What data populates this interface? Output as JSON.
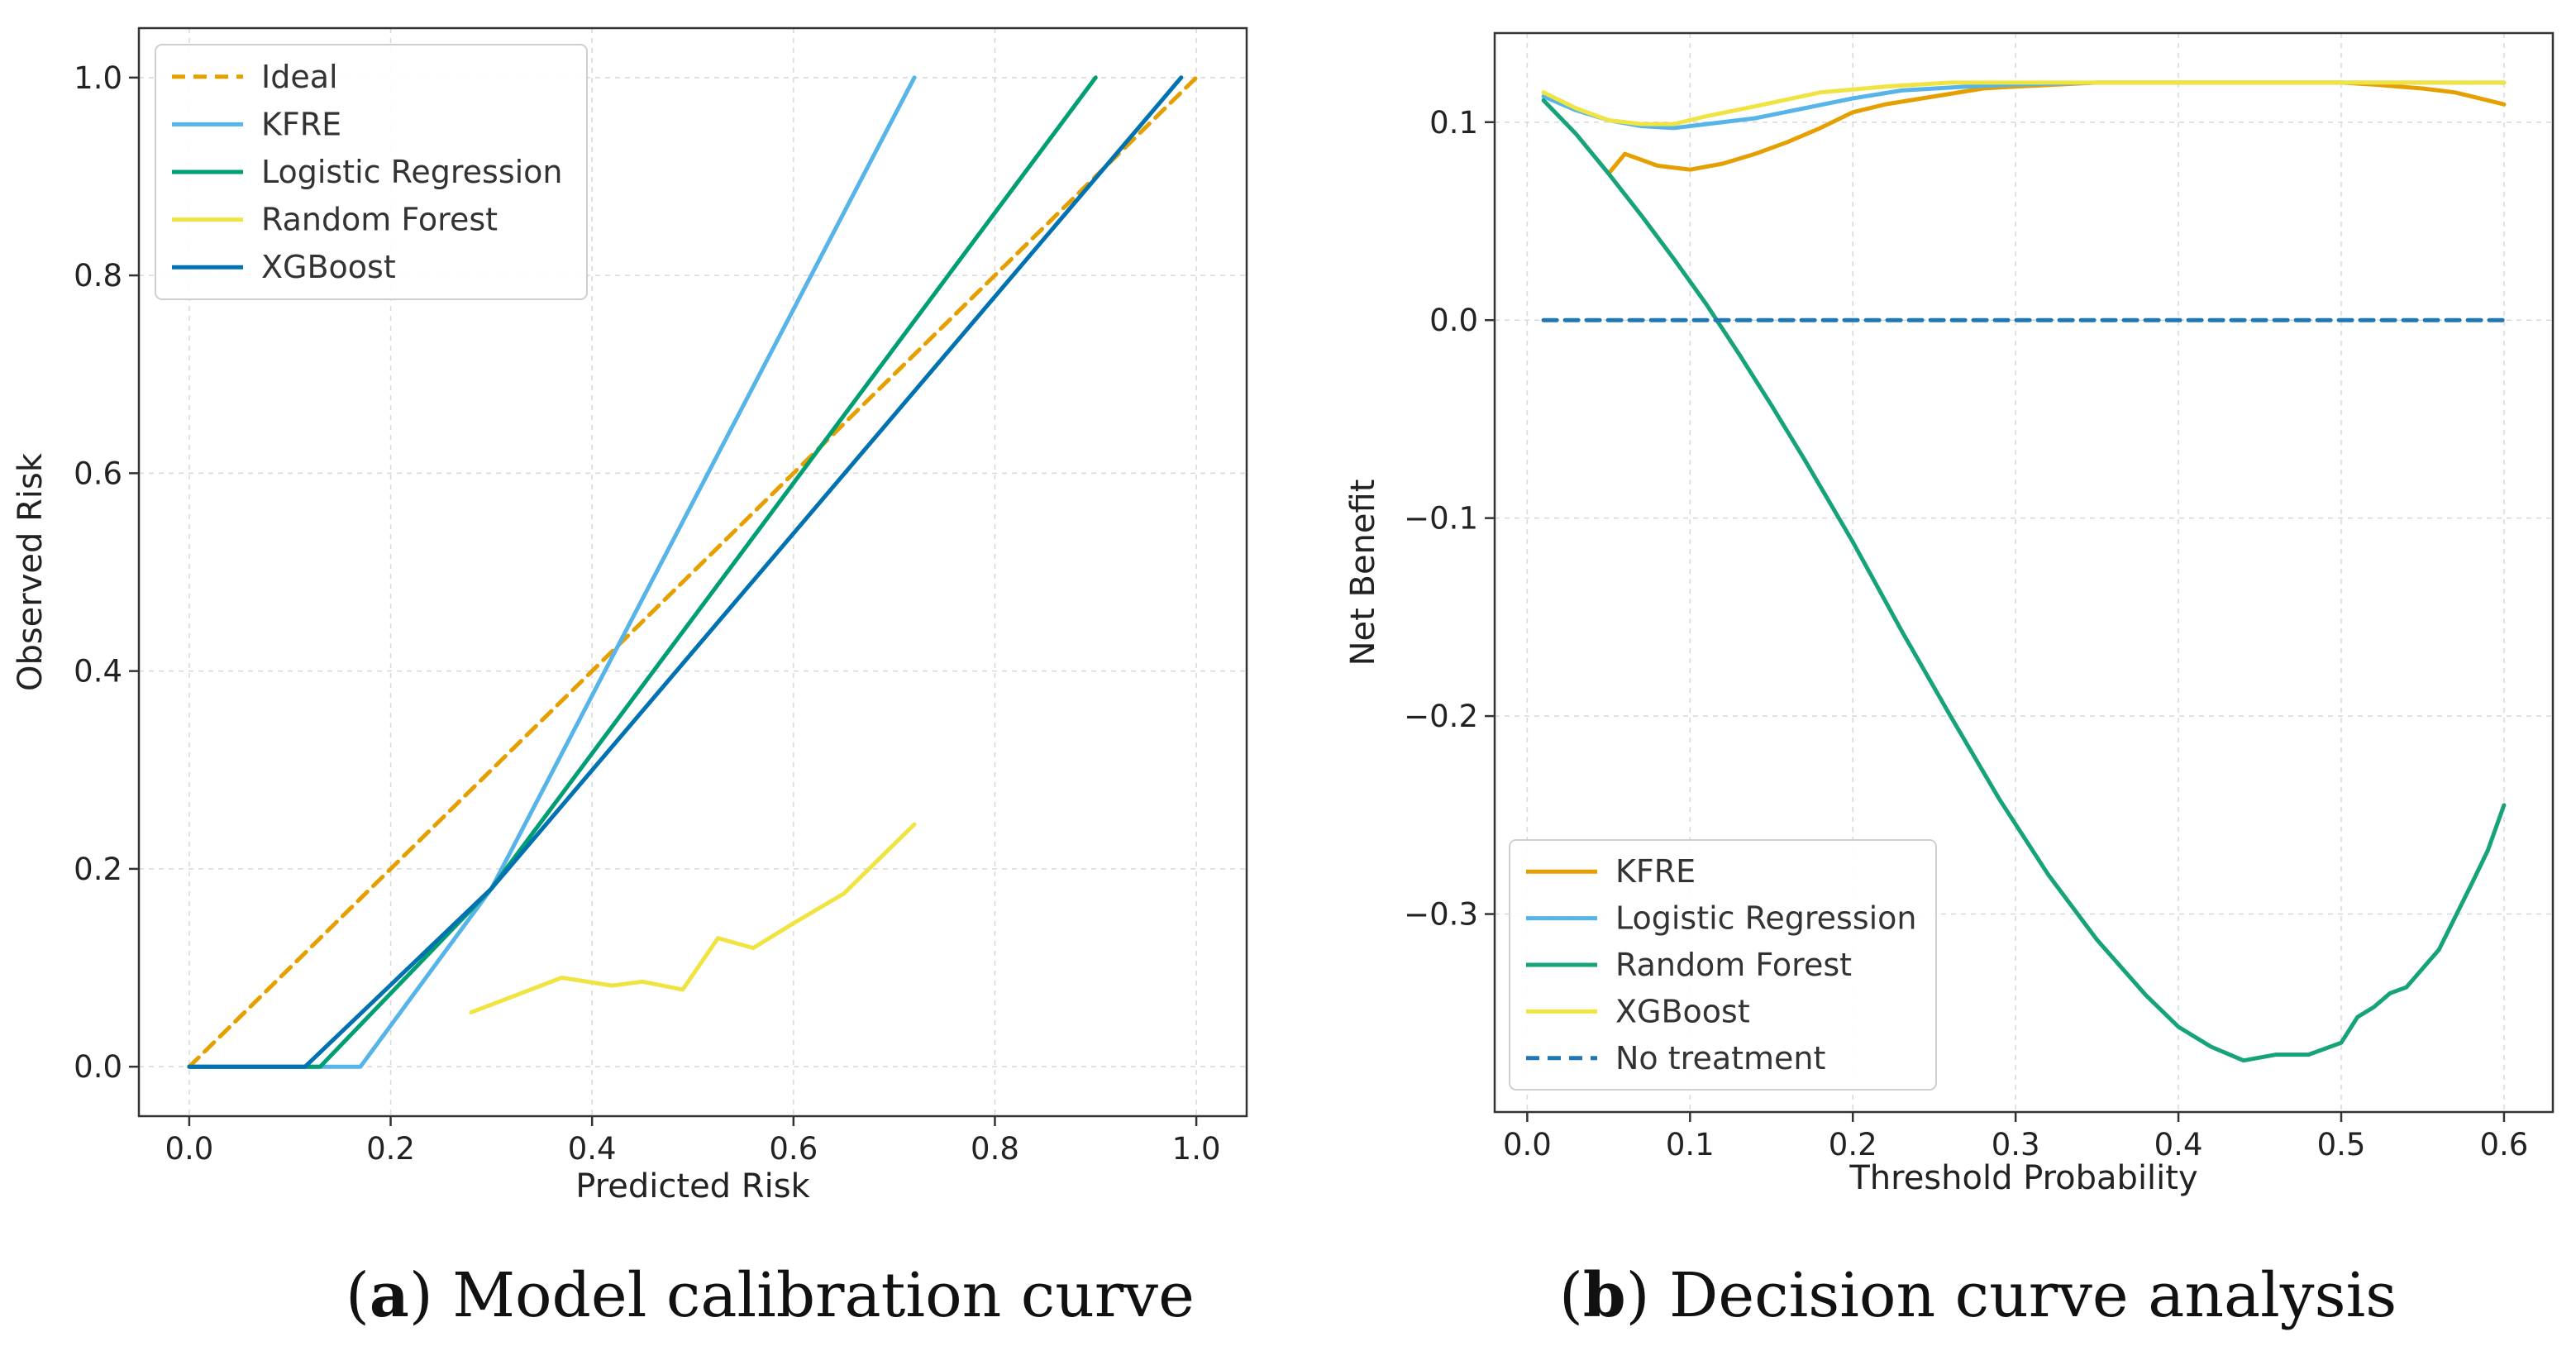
{
  "chart_data": [
    {
      "type": "line",
      "panel": "a",
      "caption_label": "a",
      "caption_text": "Model calibration curve",
      "xlabel": "Predicted Risk",
      "ylabel": "Observed Risk",
      "xlim": [
        -0.05,
        1.05
      ],
      "ylim": [
        -0.05,
        1.05
      ],
      "xticks": [
        0.0,
        0.2,
        0.4,
        0.6,
        0.8,
        1.0
      ],
      "yticks": [
        0.0,
        0.2,
        0.4,
        0.6,
        0.8,
        1.0
      ],
      "xtick_labels": [
        "0.0",
        "0.2",
        "0.4",
        "0.6",
        "0.8",
        "1.0"
      ],
      "ytick_labels": [
        "0.0",
        "0.2",
        "0.4",
        "0.6",
        "0.8",
        "1.0"
      ],
      "grid": true,
      "legend_position": "top-left",
      "series": [
        {
          "name": "Ideal",
          "color": "#E69F00",
          "dash": true,
          "x": [
            0.0,
            1.0
          ],
          "y": [
            0.0,
            1.0
          ]
        },
        {
          "name": "KFRE",
          "color": "#56B4E9",
          "dash": false,
          "x": [
            0.0,
            0.17,
            0.3,
            0.72
          ],
          "y": [
            0.0,
            0.0,
            0.18,
            1.0
          ]
        },
        {
          "name": "Logistic Regression",
          "color": "#009E73",
          "dash": false,
          "x": [
            0.0,
            0.13,
            0.3,
            0.9
          ],
          "y": [
            0.0,
            0.0,
            0.18,
            1.0
          ]
        },
        {
          "name": "Random Forest",
          "color": "#F0E442",
          "dash": false,
          "x": [
            0.28,
            0.37,
            0.42,
            0.45,
            0.49,
            0.525,
            0.56,
            0.6,
            0.65,
            0.72
          ],
          "y": [
            0.055,
            0.09,
            0.082,
            0.086,
            0.078,
            0.13,
            0.12,
            0.145,
            0.175,
            0.245
          ]
        },
        {
          "name": "XGBoost",
          "color": "#0072B2",
          "dash": false,
          "x": [
            0.0,
            0.115,
            0.3,
            0.985
          ],
          "y": [
            0.0,
            0.0,
            0.18,
            1.0
          ]
        }
      ]
    },
    {
      "type": "line",
      "panel": "b",
      "caption_label": "b",
      "caption_text": "Decision curve analysis",
      "xlabel": "Threshold Probability",
      "ylabel": "Net Benefit",
      "xlim": [
        -0.02,
        0.63
      ],
      "ylim": [
        -0.4,
        0.145
      ],
      "xticks": [
        0.0,
        0.1,
        0.2,
        0.3,
        0.4,
        0.5,
        0.6
      ],
      "yticks": [
        0.1,
        0.0,
        -0.1,
        -0.2,
        -0.3
      ],
      "xtick_labels": [
        "0.0",
        "0.1",
        "0.2",
        "0.3",
        "0.4",
        "0.5",
        "0.6"
      ],
      "ytick_labels": [
        "0.1",
        "0.0",
        "−0.1",
        "−0.2",
        "−0.3"
      ],
      "grid": true,
      "legend_position": "bottom-left",
      "series": [
        {
          "name": "KFRE",
          "color": "#E69F00",
          "dash": false,
          "x": [
            0.05,
            0.06,
            0.07,
            0.08,
            0.1,
            0.12,
            0.14,
            0.16,
            0.18,
            0.2,
            0.22,
            0.25,
            0.28,
            0.3,
            0.35,
            0.4,
            0.45,
            0.5,
            0.52,
            0.55,
            0.57,
            0.58,
            0.6
          ],
          "y": [
            0.074,
            0.084,
            0.081,
            0.078,
            0.076,
            0.079,
            0.084,
            0.09,
            0.097,
            0.105,
            0.109,
            0.113,
            0.117,
            0.118,
            0.12,
            0.12,
            0.12,
            0.12,
            0.119,
            0.117,
            0.115,
            0.113,
            0.109
          ]
        },
        {
          "name": "Logistic Regression",
          "color": "#56B4E9",
          "dash": false,
          "x": [
            0.01,
            0.03,
            0.05,
            0.07,
            0.09,
            0.11,
            0.14,
            0.17,
            0.2,
            0.23,
            0.27,
            0.3,
            0.35,
            0.4,
            0.5,
            0.6
          ],
          "y": [
            0.113,
            0.106,
            0.101,
            0.098,
            0.097,
            0.099,
            0.102,
            0.107,
            0.112,
            0.116,
            0.118,
            0.119,
            0.12,
            0.12,
            0.12,
            0.12
          ]
        },
        {
          "name": "Random Forest",
          "color": "#17A37A",
          "dash": false,
          "x": [
            0.01,
            0.03,
            0.05,
            0.07,
            0.09,
            0.11,
            0.13,
            0.15,
            0.17,
            0.2,
            0.23,
            0.26,
            0.29,
            0.32,
            0.35,
            0.38,
            0.4,
            0.42,
            0.44,
            0.46,
            0.48,
            0.5,
            0.51,
            0.52,
            0.53,
            0.54,
            0.56,
            0.58,
            0.59,
            0.6
          ],
          "y": [
            0.111,
            0.094,
            0.074,
            0.053,
            0.031,
            0.008,
            -0.017,
            -0.043,
            -0.07,
            -0.112,
            -0.157,
            -0.2,
            -0.242,
            -0.28,
            -0.313,
            -0.341,
            -0.357,
            -0.367,
            -0.374,
            -0.371,
            -0.371,
            -0.365,
            -0.352,
            -0.347,
            -0.34,
            -0.337,
            -0.318,
            -0.285,
            -0.268,
            -0.245
          ]
        },
        {
          "name": "XGBoost",
          "color": "#F0E442",
          "dash": false,
          "x": [
            0.01,
            0.03,
            0.05,
            0.07,
            0.09,
            0.11,
            0.14,
            0.18,
            0.22,
            0.26,
            0.3,
            0.35,
            0.4,
            0.5,
            0.6
          ],
          "y": [
            0.115,
            0.107,
            0.101,
            0.099,
            0.099,
            0.103,
            0.108,
            0.115,
            0.118,
            0.12,
            0.12,
            0.12,
            0.12,
            0.12,
            0.12
          ]
        },
        {
          "name": "No treatment",
          "color": "#1F77B4",
          "dash": true,
          "x": [
            0.01,
            0.6
          ],
          "y": [
            0.0,
            0.0
          ]
        }
      ]
    }
  ]
}
